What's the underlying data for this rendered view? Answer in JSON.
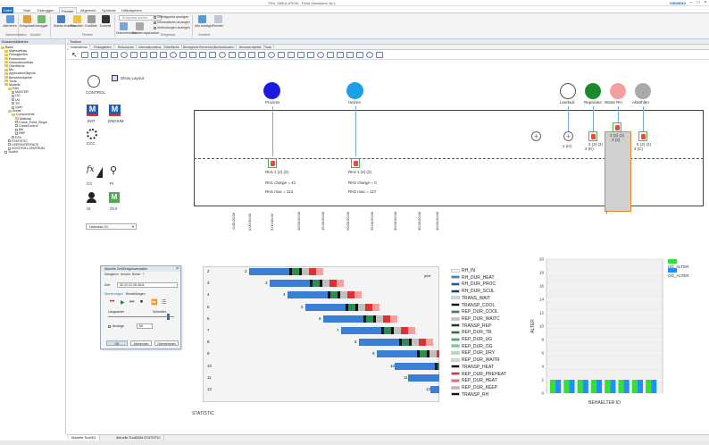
{
  "app": {
    "title": "TRA_SIMULATION - Plant Simulation 16.x",
    "brand": "SIEMENS"
  },
  "ribbon_tabs": [
    "Datei",
    "Start",
    "Debuggen",
    "Fenster",
    "Allgemein",
    "Symbole",
    "Hilfsobjekten"
  ],
  "ribbon": {
    "buttons": [
      "Aktivieren",
      "Ereignisse",
      "Debugger",
      "Klasse erstellen",
      "Favoriten",
      "Konflikte",
      "Konsole",
      "Dokumentation",
      "Markierungstoolbar",
      "Info anzeigen",
      "Fenster"
    ],
    "search_placeholder": "Ereignisse suchen",
    "checkboxes": [
      "Überlappend anzeigen",
      "Informationen anzeigen",
      "Verbindungen anzeigen"
    ],
    "groups": [
      "Dokumentation",
      "Ansicht",
      "Fenster",
      "Ereignisse",
      "Zentriert"
    ]
  },
  "left_panel": {
    "title": "Klassenbibliothek",
    "tree": [
      "Basis",
      "Materialfluss",
      "Flüssigkeiten",
      "Ressourcen",
      "Informationsfluss",
      "Oberfläche",
      "Mu",
      "ApplicationObjects",
      "Benutzerobjekte",
      "Tools",
      "Modelle",
      "RAV",
      "MASTER",
      "OG",
      "UG",
      "TR",
      "Quer",
      "Areas",
      "Components",
      "Material",
      "Crane_Point_Single",
      "CraneControl",
      "Bel",
      "RBF",
      "DTA",
      "STATISTIC",
      "USERINTERFACE",
      "KONTROLLZENTRUM",
      "ToolKit"
    ]
  },
  "doc": {
    "title": "Toolbox",
    "subtabs": [
      "Materialfluss",
      "Flüssigkeiten",
      "Ressourcen",
      "Informationsfluss",
      "Oberfläche",
      "Bewegliche Elemente",
      "Userlautomaten",
      "Benutzerobjekte",
      "Tools"
    ]
  },
  "canvas": {
    "control": "CONTROL",
    "show_layout": "Show Layout",
    "init": "INIT",
    "endsim": "ENDSIM",
    "ccc": "CCC",
    "cc": "CC",
    "pi": "PI",
    "ui": "UI",
    "oui": "ÖUI",
    "usecase": "Usecase 01",
    "statistic": "STATISTIC",
    "prozess": "Prozess",
    "heizen": "Heizen",
    "leerlauf": "Leerlauf",
    "reparatur": "Reparatur",
    "warte_rh": "Warte RH",
    "abkuehlen": "Abkühlen",
    "rh1": "RH1",
    "rh2": "RH2",
    "rh1_count": "1 (2) (2)",
    "rh2_count": "1 (2) (2)",
    "rh1_charge": "RH1 charge = 41",
    "rh1_max": "RH1 max = 113",
    "rh2_charge": "RH2 charge = 0",
    "rh2_max": "RH2 max = 127",
    "small1": "1 (H)",
    "small2": "2 (2) (2)",
    "small2b": "2 (K)",
    "small3": "3 (2) (2)",
    "small3b": "3 (2)",
    "small4": "5 (2) (2)",
    "small4b": "4 (C)",
    "warte_count": "1"
  },
  "gantt": {
    "rows": [
      "2",
      "3",
      "4",
      "5",
      "6",
      "7",
      "8",
      "9",
      "10",
      "11",
      "12"
    ],
    "time_labels": [
      "-0:00:00:00",
      "0:00:00:00",
      "5:00:00:00",
      "10:00:00:00",
      "15:00:00:00",
      "20:00:00:00",
      "25:00:00:00",
      "30:00:00:00",
      "35:00:00:00",
      "40:00:00:00"
    ],
    "legend": [
      {
        "label": "RH_IN",
        "color": "#ffffff"
      },
      {
        "label": "RH_DUR_HEAT",
        "color": "#3a7fd5"
      },
      {
        "label": "RH_DUR_PROC",
        "color": "#1e5aa8"
      },
      {
        "label": "RH_DUR_SCUL",
        "color": "#0b3d91"
      },
      {
        "label": "TRANS_WAIT",
        "color": "#cfd6df"
      },
      {
        "label": "TRANSP_COOL",
        "color": "#111111"
      },
      {
        "label": "REP_DUR_COOL",
        "color": "#2e8b57"
      },
      {
        "label": "REP_DUR_WAITC",
        "color": "#c0c0c0"
      },
      {
        "label": "TRANSP_REP",
        "color": "#0d3b1e"
      },
      {
        "label": "REP_DUR_TR",
        "color": "#1a7a3a"
      },
      {
        "label": "REP_DUR_UG",
        "color": "#3cb371"
      },
      {
        "label": "REP_DUR_OG",
        "color": "#6ad08a"
      },
      {
        "label": "REP_DUR_DRY",
        "color": "#a6e3b5"
      },
      {
        "label": "REP_DUR_WAITR",
        "color": "#d9d9d9"
      },
      {
        "label": "TRANSP_HEAT",
        "color": "#000000"
      },
      {
        "label": "REP_DUR_PREHEAT",
        "color": "#e03030"
      },
      {
        "label": "REP_DUR_HEAT",
        "color": "#ff6060"
      },
      {
        "label": "REP_DUR_KEEP",
        "color": "#f4a0a0"
      },
      {
        "label": "TRANSP_RH",
        "color": "#111111"
      }
    ],
    "jetzt": "jetzt"
  },
  "bar_chart": {
    "legend": [
      "UG_ALTER",
      "OG_ALTER"
    ],
    "xlabel": "BEHAELTER ID",
    "ylabel": "ALTER",
    "yticks": [
      "0",
      "2",
      "4",
      "6",
      "8",
      "10",
      "12",
      "14",
      "16",
      "18",
      "20"
    ]
  },
  "chart_data": {
    "type": "bar",
    "series": [
      {
        "name": "UG_ALTER",
        "values": [
          2,
          2,
          2,
          2,
          2,
          2,
          2,
          2
        ]
      },
      {
        "name": "OG_ALTER",
        "values": [
          2,
          2,
          2,
          2,
          2,
          2,
          2,
          2
        ]
      }
    ],
    "categories": [
      "1",
      "2",
      "3",
      "4",
      "5",
      "6",
      "7",
      "8"
    ],
    "xlabel": "BEHAELTER ID",
    "ylabel": "ALTER",
    "ylim": [
      0,
      20
    ],
    "legend": "top-right",
    "colors": {
      "UG_ALTER": "#35e035",
      "OG_ALTER": "#1e90ff"
    }
  },
  "dialog": {
    "title": "Aktuelle Zeit/Ereignisverwalter",
    "menu": [
      "Navigieren",
      "Ansicht",
      "Bicher",
      "?"
    ],
    "time_label": "Zeit",
    "time_value": "30:12:21:26.4511",
    "tabs": [
      "Steuerungen",
      "Einstellungen"
    ],
    "langsamer": "Langsamer",
    "schneller": "Schneller",
    "anzeige": "Anzeige",
    "anzeige_value": "60",
    "ok": "OK",
    "abbrechen": "Abbrechen",
    "uebernehmen": "Übernehmen"
  },
  "bottom_tabs": [
    "Modelle.Tool001",
    "Aktuelle.ToolDBM.STATISTIC"
  ]
}
